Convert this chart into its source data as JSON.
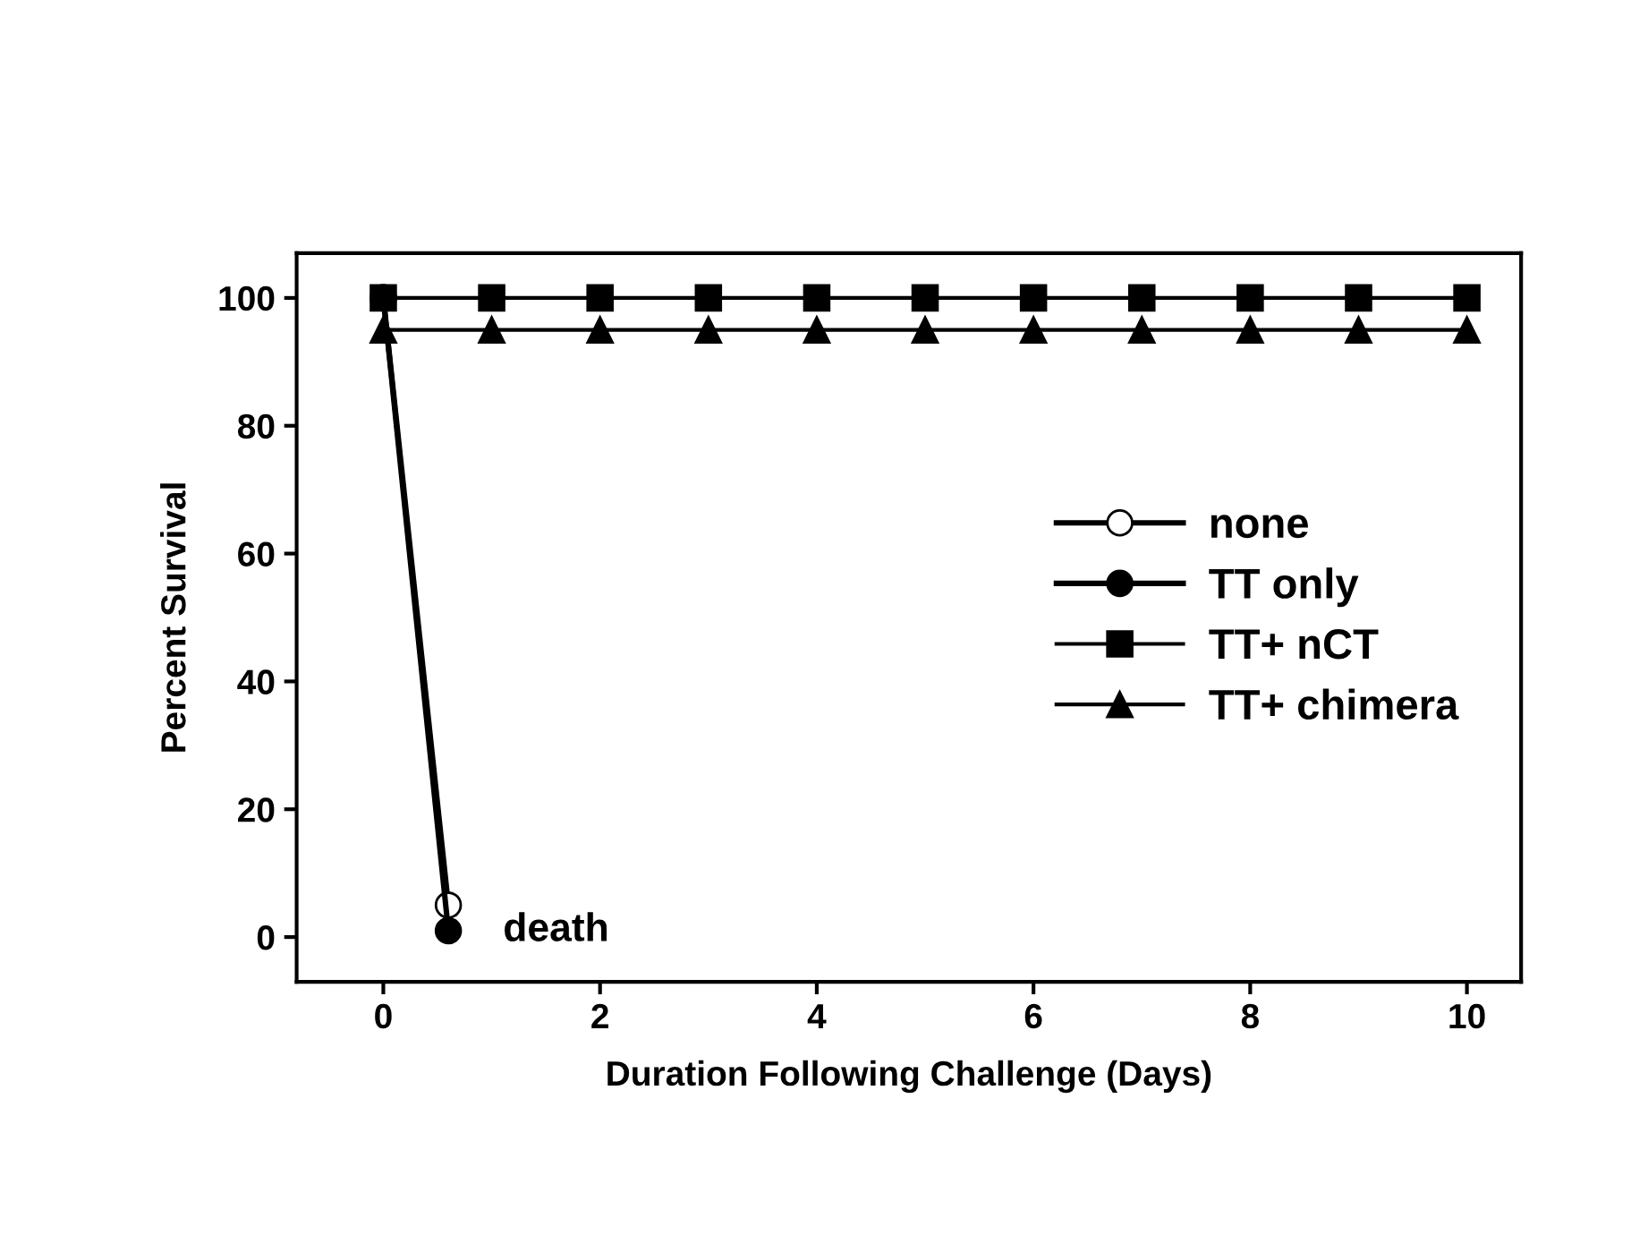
{
  "chart_data": {
    "type": "line",
    "xlabel": "Duration Following Challenge (Days)",
    "ylabel": "Percent Survival",
    "xlim": [
      -0.8,
      10.5
    ],
    "ylim": [
      -7,
      107
    ],
    "xticks": [
      0,
      2,
      4,
      6,
      8,
      10
    ],
    "yticks": [
      0,
      20,
      40,
      60,
      80,
      100
    ],
    "series": [
      {
        "name": "none",
        "color": "#ffffff",
        "marker": "circle",
        "x": [
          0,
          0.6
        ],
        "values": [
          100,
          5
        ]
      },
      {
        "name": "TT only",
        "color": "#000000",
        "marker": "circle",
        "x": [
          0,
          0.6
        ],
        "values": [
          100,
          1
        ]
      },
      {
        "name": "TT+ nCT",
        "color": "#000000",
        "marker": "square",
        "x": [
          0,
          1,
          2,
          3,
          4,
          5,
          6,
          7,
          8,
          9,
          10
        ],
        "values": [
          100,
          100,
          100,
          100,
          100,
          100,
          100,
          100,
          100,
          100,
          100
        ]
      },
      {
        "name": "TT+ chimera",
        "color": "#000000",
        "marker": "triangle",
        "x": [
          0,
          1,
          2,
          3,
          4,
          5,
          6,
          7,
          8,
          9,
          10
        ],
        "values": [
          95,
          95,
          95,
          95,
          95,
          95,
          95,
          95,
          95,
          95,
          95
        ]
      }
    ],
    "annotations": [
      {
        "text": "death",
        "x": 0.6,
        "y": 1
      }
    ],
    "legend": "right",
    "grid": false,
    "line_style": "solid"
  }
}
